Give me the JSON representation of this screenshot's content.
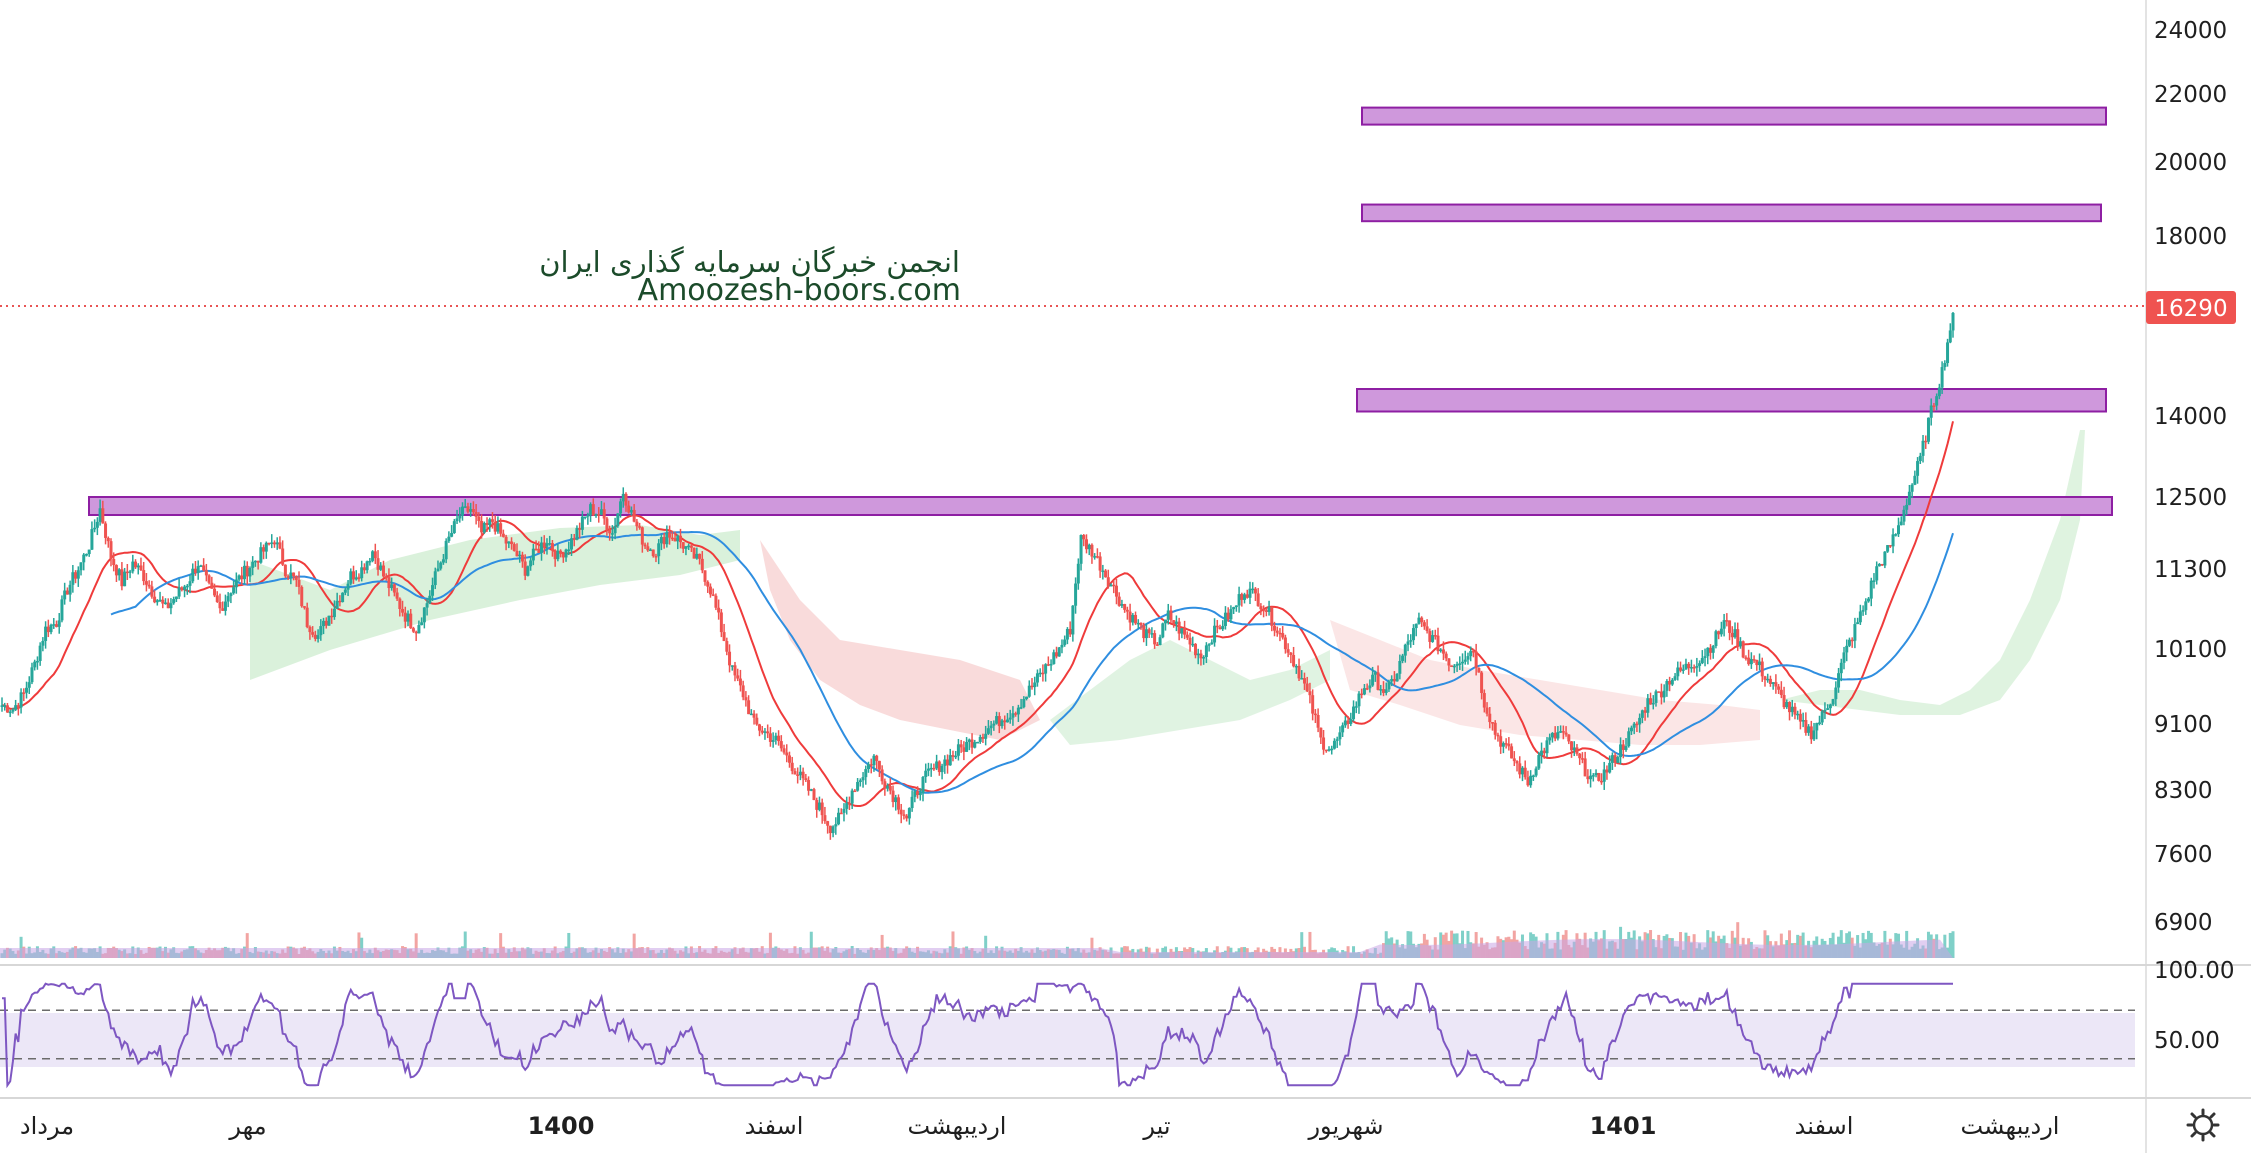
{
  "chart_data": {
    "type": "candlestick",
    "last_price": "16290",
    "y_ticks": [
      "24000",
      "22000",
      "20000",
      "18000",
      "14000",
      "12500",
      "11300",
      "10100",
      "9100",
      "8300",
      "7600",
      "6900"
    ],
    "rsi_ticks": [
      "100.00",
      "50.00"
    ],
    "x_ticks": [
      {
        "label": "مرداد",
        "bold": false
      },
      {
        "label": "مهر",
        "bold": false
      },
      {
        "label": "1400",
        "bold": true
      },
      {
        "label": "اسفند",
        "bold": false
      },
      {
        "label": "اردیبهشت",
        "bold": false
      },
      {
        "label": "تیر",
        "bold": false
      },
      {
        "label": "شهریور",
        "bold": false
      },
      {
        "label": "1401",
        "bold": true
      },
      {
        "label": "اسفند",
        "bold": false
      },
      {
        "label": "اردیبهشت",
        "bold": false
      }
    ],
    "resistance_zones": [
      {
        "low": 21100,
        "high": 21600
      },
      {
        "low": 18400,
        "high": 18850
      },
      {
        "low": 14100,
        "high": 14600
      },
      {
        "low": 12200,
        "high": 12500
      }
    ],
    "rsi_levels": [
      70,
      30
    ],
    "price_path": [
      9350,
      9300,
      9500,
      9900,
      10400,
      10500,
      11000,
      11300,
      11700,
      12300,
      11500,
      11100,
      11400,
      11200,
      10900,
      10700,
      10900,
      11100,
      11400,
      11000,
      10700,
      11000,
      11200,
      11400,
      11600,
      11800,
      11300,
      11100,
      10500,
      10300,
      10600,
      10900,
      11200,
      11300,
      11600,
      11200,
      10900,
      10600,
      10400,
      10800,
      11300,
      11800,
      12200,
      12300,
      11900,
      12100,
      11800,
      11600,
      11300,
      11600,
      11800,
      11500,
      11700,
      12000,
      12300,
      12200,
      11900,
      12600,
      12100,
      11700,
      11600,
      11900,
      11800,
      11600,
      11400,
      11000,
      10400,
      9800,
      9500,
      9100,
      9000,
      8900,
      8700,
      8500,
      8300,
      8100,
      7900,
      8000,
      8300,
      8500,
      8700,
      8400,
      8200,
      8000,
      8300,
      8500,
      8600,
      8700,
      8800,
      8900,
      9000,
      9100,
      9200,
      9300,
      9500,
      9700,
      9900,
      10100,
      10400,
      11800,
      11600,
      11300,
      11000,
      10700,
      10500,
      10300,
      10200,
      10600,
      10400,
      10200,
      10000,
      10300,
      10500,
      10700,
      11000,
      10900,
      10700,
      10400,
      10100,
      9800,
      9400,
      8900,
      8800,
      9000,
      9300,
      9600,
      9700,
      9500,
      9800,
      10200,
      10500,
      10300,
      10100,
      9900,
      10000,
      10100,
      9400,
      9000,
      8800,
      8600,
      8400,
      8700,
      8900,
      9000,
      8800,
      8600,
      8400,
      8500,
      8700,
      8900,
      9100,
      9400,
      9500,
      9700,
      9800,
      9900,
      10000,
      10200,
      10500,
      10300,
      10000,
      9900,
      9700,
      9500,
      9300,
      9100,
      9000,
      9200,
      9500,
      10000,
      10400,
      10800,
      11300,
      11600,
      12000,
      12600,
      13200,
      14100,
      15000,
      16290
    ]
  }
}
